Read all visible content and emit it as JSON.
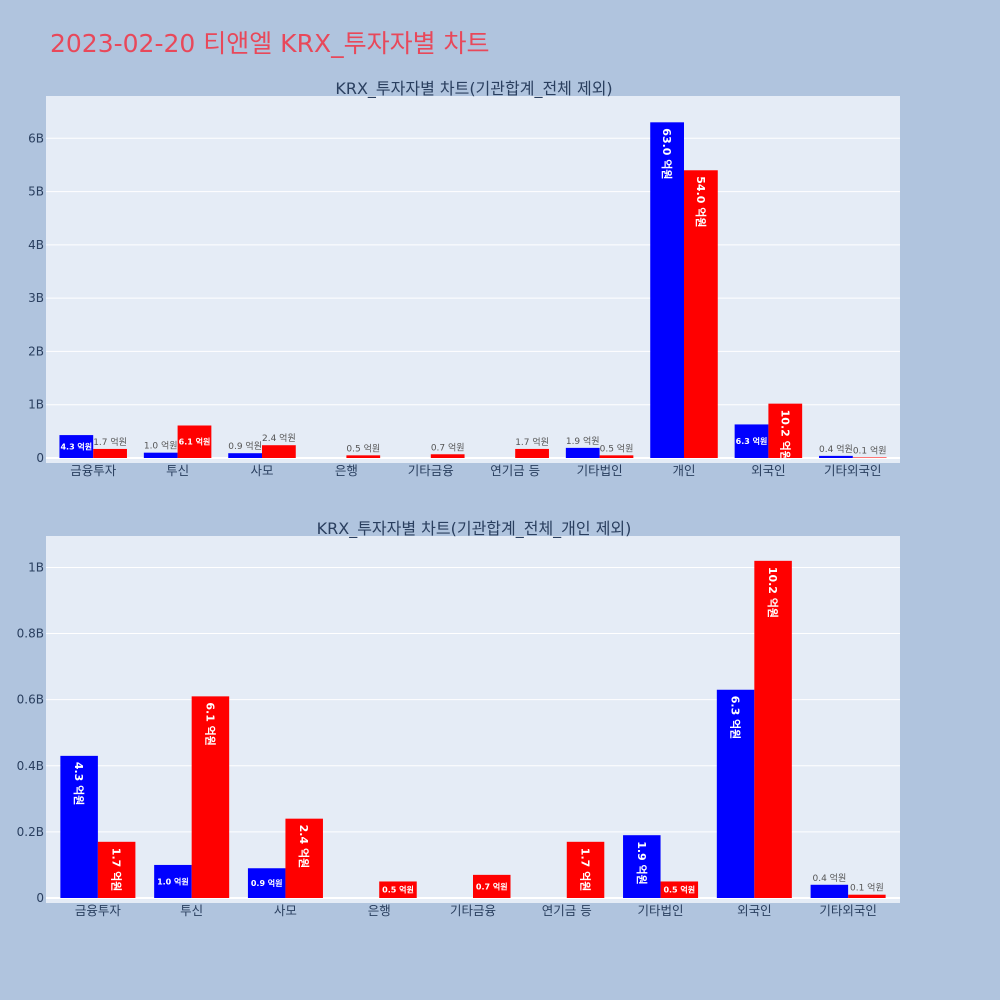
{
  "title": "2023-02-20 티앤엘 KRX_투자자별 차트",
  "colors": {
    "background": "#b0c4de",
    "plot_bg": "#e5ecf6",
    "title": "#e8485a",
    "series_blue": "#0000ff",
    "series_red": "#ff0000",
    "text": "#2a3f5f"
  },
  "chart_data": [
    {
      "type": "bar",
      "title": "KRX_투자자별 차트(기관합계_전체 제외)",
      "categories": [
        "금융투자",
        "투신",
        "사모",
        "은행",
        "기타금융",
        "연기금 등",
        "기타법인",
        "개인",
        "외국인",
        "기타외국인"
      ],
      "series": [
        {
          "values": [
            430000000,
            100000000,
            90000000,
            0,
            0,
            0,
            190000000,
            6300000000,
            630000000,
            40000000
          ],
          "labels": [
            "4.3 억원",
            "1.0 억원",
            "0.9 억원",
            "",
            "",
            "",
            "1.9 억원",
            "63.0 억원",
            "6.3 억원",
            "0.4 억원"
          ]
        },
        {
          "values": [
            170000000,
            610000000,
            240000000,
            50000000,
            70000000,
            170000000,
            50000000,
            5400000000,
            1020000000,
            10000000
          ],
          "labels": [
            "1.7 억원",
            "6.1 억원",
            "2.4 억원",
            "0.5 억원",
            "0.7 억원",
            "1.7 억원",
            "0.5 억원",
            "54.0 억원",
            "10.2 억원",
            "0.1 억원"
          ]
        }
      ],
      "yticks": [
        "0",
        "1B",
        "2B",
        "3B",
        "4B",
        "5B",
        "6B"
      ],
      "ylim": [
        0,
        6700000000
      ],
      "grid": true
    },
    {
      "type": "bar",
      "title": "KRX_투자자별 차트(기관합계_전체_개인 제외)",
      "categories": [
        "금융투자",
        "투신",
        "사모",
        "은행",
        "기타금융",
        "연기금 등",
        "기타법인",
        "외국인",
        "기타외국인"
      ],
      "series": [
        {
          "values": [
            430000000,
            100000000,
            90000000,
            0,
            0,
            0,
            190000000,
            630000000,
            40000000
          ],
          "labels": [
            "4.3 억원",
            "1.0 억원",
            "0.9 억원",
            "",
            "",
            "",
            "1.9 억원",
            "6.3 억원",
            "0.4 억원"
          ]
        },
        {
          "values": [
            170000000,
            610000000,
            240000000,
            50000000,
            70000000,
            170000000,
            50000000,
            1020000000,
            10000000
          ],
          "labels": [
            "1.7 억원",
            "6.1 억원",
            "2.4 억원",
            "0.5 억원",
            "0.7 억원",
            "1.7 억원",
            "0.5 억원",
            "10.2 억원",
            "0.1 억원"
          ]
        }
      ],
      "yticks": [
        "0",
        "0.2B",
        "0.4B",
        "0.6B",
        "0.8B",
        "1B"
      ],
      "ylim": [
        0,
        1080000000
      ],
      "grid": true
    }
  ]
}
